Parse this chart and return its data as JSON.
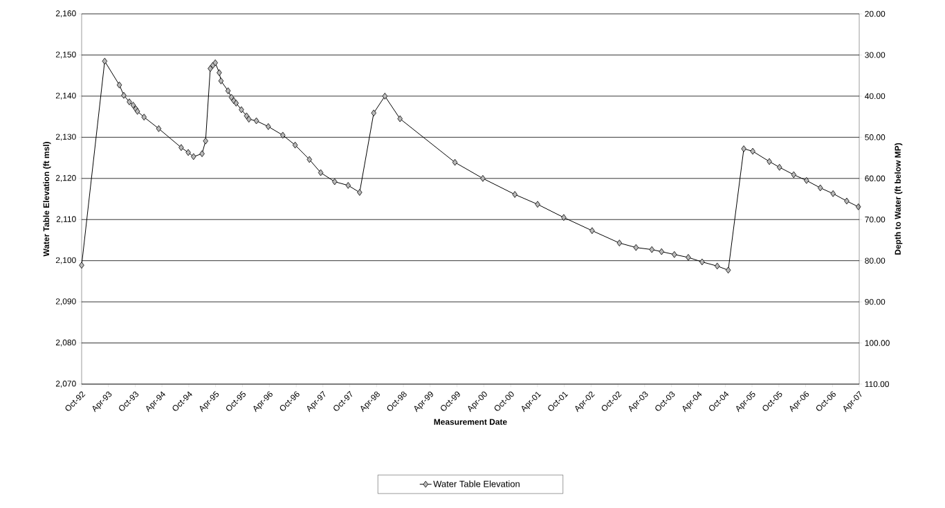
{
  "chart_data": {
    "type": "line",
    "xlabel": "Measurement Date",
    "ylabel": "Water Table Elevation (ft msl)",
    "y2label": "Depth to Water (ft below MP)",
    "x": [
      "1992-10-01",
      "1993-03-07",
      "1993-06-15",
      "1993-07-15",
      "1993-08-22",
      "1993-09-17",
      "1993-10-05",
      "1993-10-16",
      "1993-11-30",
      "1994-03-10",
      "1994-08-10",
      "1994-09-27",
      "1994-11-02",
      "1994-12-30",
      "1995-01-23",
      "1995-02-24",
      "1995-03-14",
      "1995-03-30",
      "1995-04-26",
      "1995-05-08",
      "1995-06-25",
      "1995-07-18",
      "1995-08-03",
      "1995-08-19",
      "1995-09-24",
      "1995-10-29",
      "1995-11-14",
      "1996-01-04",
      "1996-03-25",
      "1996-07-02",
      "1996-09-24",
      "1996-12-30",
      "1997-03-17",
      "1997-06-20",
      "1997-09-20",
      "1997-12-07",
      "1998-03-13",
      "1998-05-28",
      "1998-09-08",
      "1999-09-17",
      "2000-03-25",
      "2000-10-29",
      "2001-04-02",
      "2001-09-27",
      "2002-04-08",
      "2002-10-11",
      "2003-02-01",
      "2003-05-20",
      "2003-07-25",
      "2003-10-20",
      "2004-01-23",
      "2004-04-26",
      "2004-08-07",
      "2004-10-21",
      "2005-02-04",
      "2005-04-06",
      "2005-07-28",
      "2005-10-05",
      "2006-01-10",
      "2006-04-07",
      "2006-07-10",
      "2006-10-05",
      "2007-01-06",
      "2007-03-26"
    ],
    "series": [
      {
        "name": "Water Table Elevation",
        "color": "#000000",
        "values": [
          2098.9,
          2148.5,
          2142.7,
          2140.2,
          2138.6,
          2137.8,
          2136.9,
          2136.3,
          2134.9,
          2132.1,
          2127.5,
          2126.3,
          2125.3,
          2126.0,
          2129.1,
          2146.7,
          2147.5,
          2148.1,
          2145.7,
          2143.7,
          2141.3,
          2139.7,
          2138.9,
          2138.3,
          2136.7,
          2135.2,
          2134.4,
          2134.0,
          2132.6,
          2130.5,
          2128.1,
          2124.6,
          2121.4,
          2119.2,
          2118.3,
          2116.6,
          2135.9,
          2140.0,
          2134.5,
          2123.9,
          2120.0,
          2116.1,
          2113.7,
          2110.5,
          2107.3,
          2104.3,
          2103.2,
          2102.7,
          2102.2,
          2101.5,
          2100.8,
          2099.7,
          2098.7,
          2097.7,
          2127.2,
          2126.6,
          2124.1,
          2122.7,
          2120.9,
          2119.5,
          2117.7,
          2116.3,
          2114.5,
          2113.1
        ]
      }
    ],
    "xlim": [
      "1992-10-01",
      "2007-04-01"
    ],
    "xticks": [
      {
        "value": "1992-10-01",
        "label": "Oct-92"
      },
      {
        "value": "1993-04-01",
        "label": "Apr-93"
      },
      {
        "value": "1993-10-01",
        "label": "Oct-93"
      },
      {
        "value": "1994-04-01",
        "label": "Apr-94"
      },
      {
        "value": "1994-10-01",
        "label": "Oct-94"
      },
      {
        "value": "1995-04-01",
        "label": "Apr-95"
      },
      {
        "value": "1995-10-01",
        "label": "Oct-95"
      },
      {
        "value": "1996-04-01",
        "label": "Apr-96"
      },
      {
        "value": "1996-10-01",
        "label": "Oct-96"
      },
      {
        "value": "1997-04-01",
        "label": "Apr-97"
      },
      {
        "value": "1997-10-01",
        "label": "Oct-97"
      },
      {
        "value": "1998-04-01",
        "label": "Apr-98"
      },
      {
        "value": "1998-10-01",
        "label": "Oct-98"
      },
      {
        "value": "1999-04-01",
        "label": "Apr-99"
      },
      {
        "value": "1999-10-01",
        "label": "Oct-99"
      },
      {
        "value": "2000-04-01",
        "label": "Apr-00"
      },
      {
        "value": "2000-10-01",
        "label": "Oct-00"
      },
      {
        "value": "2001-04-01",
        "label": "Apr-01"
      },
      {
        "value": "2001-10-01",
        "label": "Oct-01"
      },
      {
        "value": "2002-04-01",
        "label": "Apr-02"
      },
      {
        "value": "2002-10-01",
        "label": "Oct-02"
      },
      {
        "value": "2003-04-01",
        "label": "Apr-03"
      },
      {
        "value": "2003-10-01",
        "label": "Oct-03"
      },
      {
        "value": "2004-04-01",
        "label": "Apr-04"
      },
      {
        "value": "2004-10-01",
        "label": "Oct-04"
      },
      {
        "value": "2005-04-01",
        "label": "Apr-05"
      },
      {
        "value": "2005-10-01",
        "label": "Oct-05"
      },
      {
        "value": "2006-04-01",
        "label": "Apr-06"
      },
      {
        "value": "2006-10-01",
        "label": "Oct-06"
      },
      {
        "value": "2007-04-01",
        "label": "Apr-07"
      }
    ],
    "ylim": [
      2070,
      2160
    ],
    "yticks": [
      {
        "value": 2070,
        "label": "2,070"
      },
      {
        "value": 2080,
        "label": "2,080"
      },
      {
        "value": 2090,
        "label": "2,090"
      },
      {
        "value": 2100,
        "label": "2,100"
      },
      {
        "value": 2110,
        "label": "2,110"
      },
      {
        "value": 2120,
        "label": "2,120"
      },
      {
        "value": 2130,
        "label": "2,130"
      },
      {
        "value": 2140,
        "label": "2,140"
      },
      {
        "value": 2150,
        "label": "2,150"
      },
      {
        "value": 2160,
        "label": "2,160"
      }
    ],
    "y2lim": [
      110,
      20
    ],
    "y2ticks": [
      {
        "value": 20,
        "label": "20.00"
      },
      {
        "value": 30,
        "label": "30.00"
      },
      {
        "value": 40,
        "label": "40.00"
      },
      {
        "value": 50,
        "label": "50.00"
      },
      {
        "value": 60,
        "label": "60.00"
      },
      {
        "value": 70,
        "label": "70.00"
      },
      {
        "value": 80,
        "label": "80.00"
      },
      {
        "value": 90,
        "label": "90.00"
      },
      {
        "value": 100,
        "label": "100.00"
      },
      {
        "value": 110,
        "label": "110.00"
      }
    ],
    "grid": "y",
    "legend": "bottom",
    "marker": "diamond",
    "line_style": "solid"
  }
}
